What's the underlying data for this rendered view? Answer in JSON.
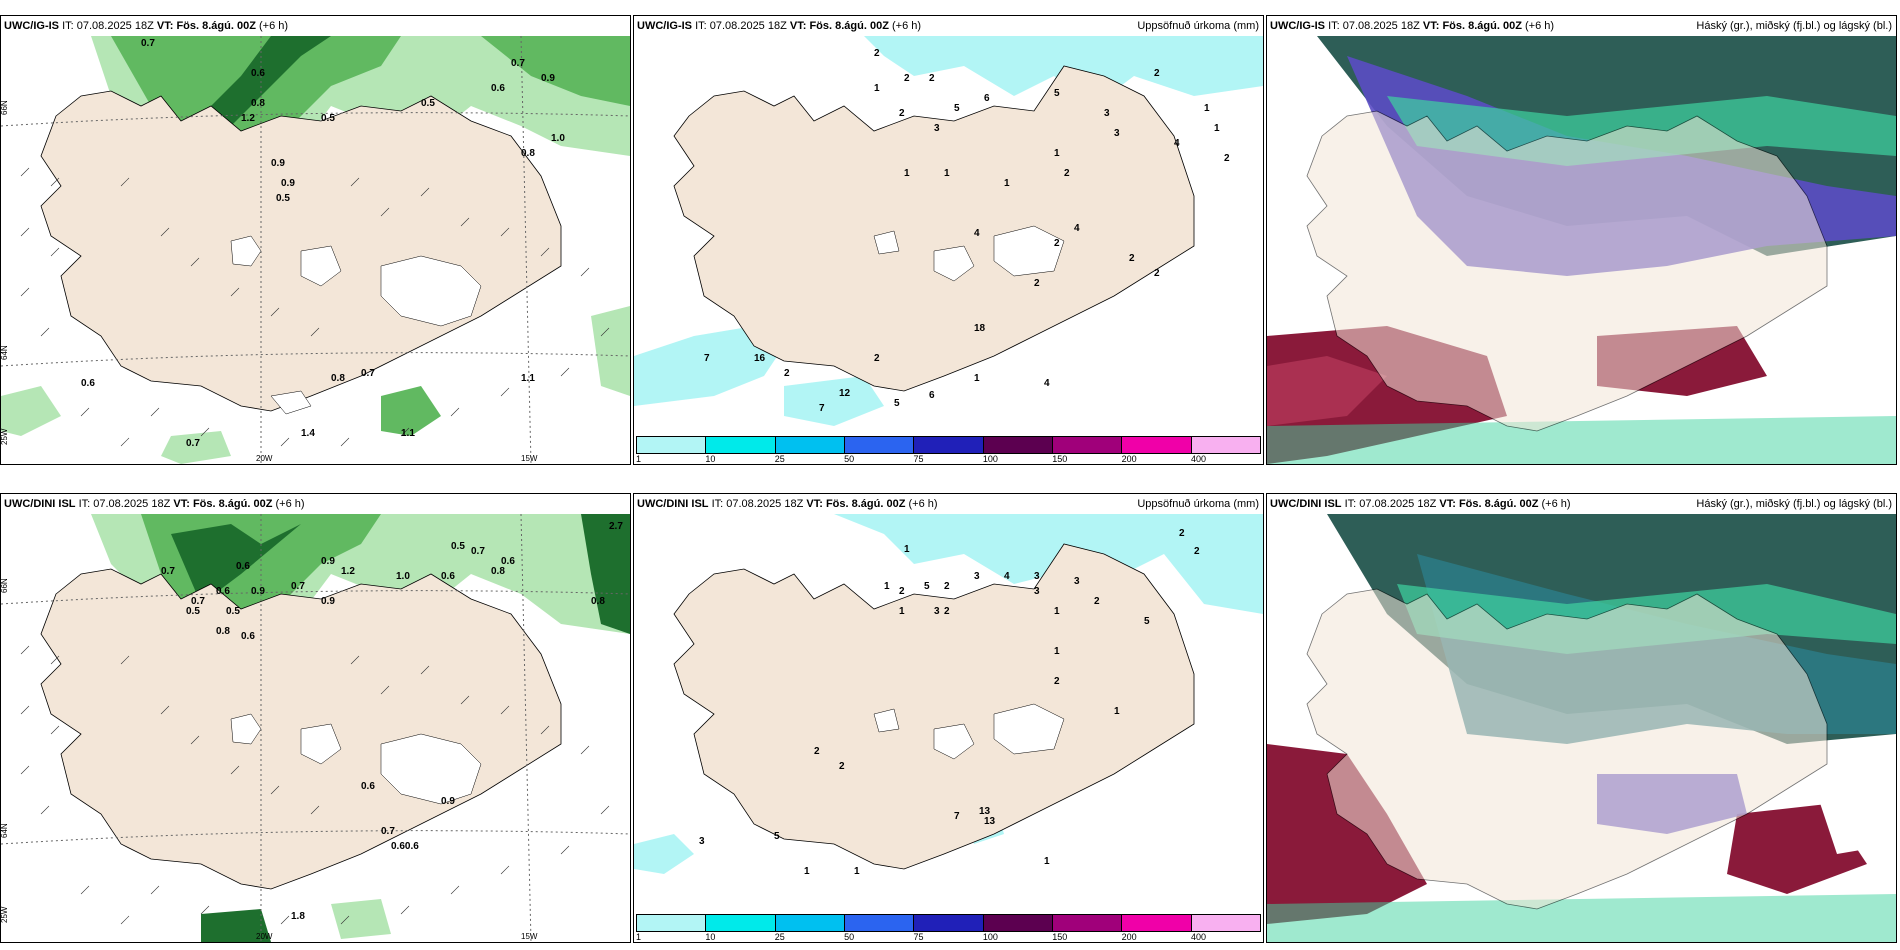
{
  "rows": [
    {
      "model": "UWC/IG-IS",
      "it_label": "IT:",
      "it_value": "07.08.2025 18Z",
      "vt_label": "VT:",
      "vt_value": "Fös. 8.ágú. 00Z",
      "lead": "(+6 h)",
      "precip_title": "Uppsöfnuð úrkoma (mm)",
      "cloud_title": "Háský (gr.), miðský (fj.bl.) og lágský (bl.)",
      "cloud_values": [
        "0.7",
        "0.8",
        "0.9",
        "0.5",
        "0.6",
        "1.0",
        "0.6",
        "0.7",
        "0.9",
        "0.8",
        "0.5",
        "1.2",
        "0.9",
        "0.5",
        "0.8",
        "0.6",
        "0.7",
        "1.1",
        "0.7",
        "1.1",
        "1.4"
      ],
      "precip_values": [
        "2",
        "2",
        "1",
        "2",
        "2",
        "5",
        "6",
        "3",
        "5",
        "3",
        "2",
        "4",
        "3",
        "1",
        "1",
        "1",
        "1",
        "1",
        "2",
        "1",
        "4",
        "2",
        "2",
        "2",
        "2",
        "2",
        "4",
        "18",
        "7",
        "16",
        "2",
        "2",
        "12",
        "7",
        "6",
        "1",
        "4",
        "5"
      ]
    },
    {
      "model": "UWC/DINI ISL",
      "it_label": "IT:",
      "it_value": "07.08.2025 18Z",
      "vt_label": "VT:",
      "vt_value": "Fös. 8.ágú. 00Z",
      "lead": "(+6 h)",
      "precip_title": "Uppsöfnuð úrkoma (mm)",
      "cloud_title": "Háský (gr.), miðský (fj.bl.) og lágský (bl.)",
      "cloud_values": [
        "0.7",
        "0.6",
        "0.7",
        "0.5",
        "0.6",
        "0.9",
        "0.5",
        "0.8",
        "0.6",
        "0.9",
        "0.7",
        "1.2",
        "0.9",
        "0.5",
        "0.6",
        "0.7",
        "0.8",
        "1.0",
        "0.6",
        "0.8",
        "2.7",
        "0.9",
        "0.6",
        "0.7",
        "0.60.6",
        "1.8"
      ],
      "precip_values": [
        "1",
        "1",
        "2",
        "5",
        "2",
        "3",
        "1",
        "3",
        "2",
        "4",
        "3",
        "1",
        "3",
        "3",
        "2",
        "5",
        "1",
        "2",
        "1",
        "2",
        "2",
        "2",
        "13",
        "13",
        "7",
        "3",
        "5",
        "1",
        "1",
        "1",
        "2"
      ]
    }
  ],
  "axes": {
    "lat_66": "66N",
    "lat_64": "64N",
    "lon_25": "25W",
    "lon_20": "20W",
    "lon_15": "15W"
  },
  "legend": {
    "ticks": [
      "1",
      "10",
      "25",
      "50",
      "75",
      "100",
      "150",
      "200",
      "400"
    ],
    "colors": [
      "#b2f5f5",
      "#00eaea",
      "#00c0f0",
      "#2b64f0",
      "#2020b8",
      "#5c0050",
      "#a0007a",
      "#f000a8",
      "#f8b0f0"
    ]
  },
  "palette": {
    "land": "#f3e6d8",
    "green_light": "#b5e6b5",
    "green_mid": "#61b961",
    "green_dark": "#1e6f2e",
    "cyan_precip": "#b2f5f5",
    "cloud_high": "#2e5e57",
    "cloud_mid": "#5b4cc4",
    "cloud_low": "#8a1a3a",
    "cloud_teal": "#3fd3a0"
  }
}
